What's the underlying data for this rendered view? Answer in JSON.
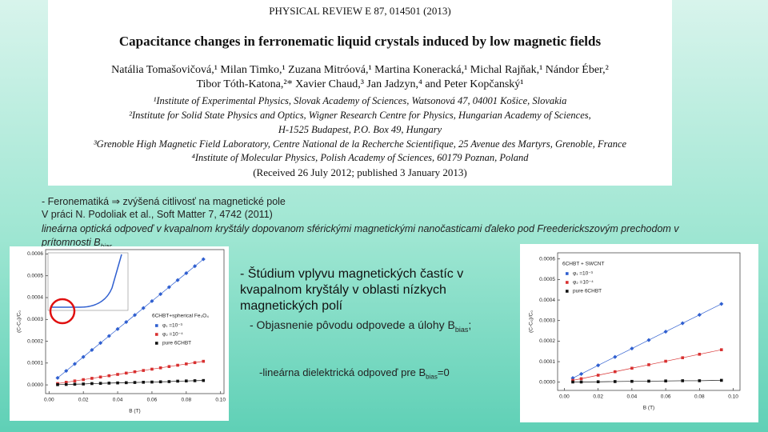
{
  "header": {
    "journal": "PHYSICAL REVIEW E 87, 014501 (2013)",
    "title": "Capacitance changes in ferronematic liquid crystals induced by low magnetic fields",
    "authors": [
      "Natália Tomašovičová,¹ Milan Timko,¹ Zuzana Mitróová,¹ Martina Koneracká,¹ Michal Rajňak,¹ Nándor Éber,²",
      "Tibor Tóth-Katona,²* Xavier Chaud,³ Jan Jadzyn,⁴ and Peter Kopčanský¹"
    ],
    "affiliations": [
      "¹Institute of Experimental Physics, Slovak Academy of Sciences, Watsonová 47, 04001 Košice, Slovakia",
      "²Institute for Solid State Physics and Optics, Wigner Research Centre for Physics, Hungarian Academy of Sciences,",
      "H-1525 Budapest, P.O. Box 49, Hungary",
      "³Grenoble High Magnetic Field Laboratory, Centre National de la Recherche Scientifique, 25 Avenue des Martyrs, Grenoble, France",
      "⁴Institute of Molecular Physics, Polish Academy of Sciences, 60179 Poznan, Poland"
    ],
    "received": "(Received 26 July 2012; published 3 January 2013)"
  },
  "notes": {
    "line1": "- Feronematiká ⇒ zvýšená citlivosť na magnetické pole",
    "line2": "V práci N. Podoliak et al., Soft Matter 7, 4742 (2011)",
    "line3": " lineárna optická odpoveď v kvapalnom kryštály dopovanom sférickými magnetickými nanočasticami  ďaleko pod Freederickszovým prechodom v prítomnosti B",
    "line3_sub": "bias"
  },
  "points": {
    "study": "- Štúdium vplyvu magnetických častíc v kvapalnom kryštály v oblasti nízkych magnetických polí",
    "origin": "- Objasnenie pôvodu odpovede a úlohy B",
    "origin_sub": "bias",
    "origin_end": ";",
    "linear": "-lineárna dielektrická odpoveď pre B",
    "linear_sub": "bias",
    "linear_end": "=0"
  },
  "charts": [
    {
      "type": "scatter",
      "xlabel": "B (T)",
      "ylabel": "(C-C₀)/C₀",
      "legend_title": "6CHBT+spherical Fe₃O₄",
      "xlim": [
        -0.002,
        0.102
      ],
      "ylim": [
        -4e-05,
        0.00062
      ],
      "xticks": [
        {
          "value": 0,
          "label": "0.00"
        },
        0.02,
        0.04,
        0.06,
        0.08,
        {
          "value": 0.1,
          "label": "0.10"
        }
      ],
      "yticks": [
        {
          "value": 0,
          "label": "0.0000"
        },
        0.0001,
        0.0002,
        0.0003,
        0.0004,
        0.0005,
        0.0006
      ],
      "x": [
        0.005,
        0.01,
        0.015,
        0.02,
        0.025,
        0.03,
        0.035,
        0.04,
        0.045,
        0.05,
        0.055,
        0.06,
        0.065,
        0.07,
        0.075,
        0.08,
        0.085,
        0.09
      ],
      "series": [
        {
          "name": "φ₁ =10⁻³",
          "color": "#2f5fd0",
          "values": [
            3.2e-05,
            6.4e-05,
            9.6e-05,
            0.000128,
            0.00016,
            0.000192,
            0.000224,
            0.000256,
            0.000288,
            0.00032,
            0.000352,
            0.000384,
            0.000416,
            0.000448,
            0.00048,
            0.000512,
            0.000544,
            0.000576
          ]
        },
        {
          "name": "φ₂ =10⁻⁴",
          "color": "#d83030",
          "values": [
            6e-06,
            1.2e-05,
            1.8e-05,
            2.4e-05,
            3e-05,
            3.6e-05,
            4.2e-05,
            4.8e-05,
            5.4e-05,
            6e-05,
            6.6e-05,
            7.2e-05,
            7.8e-05,
            8.4e-05,
            9e-05,
            9.6e-05,
            0.000102,
            0.000108
          ]
        },
        {
          "name": "pure 6CHBT",
          "color": "#111111",
          "values": [
            1e-06,
            2e-06,
            3e-06,
            4e-06,
            6e-06,
            7e-06,
            8e-06,
            9e-06,
            1e-05,
            1.1e-05,
            1.2e-05,
            1.3e-05,
            1.4e-05,
            1.5e-05,
            1.7e-05,
            1.8e-05,
            1.9e-05,
            2e-05
          ]
        }
      ]
    },
    {
      "type": "scatter",
      "xlabel": "B (T)",
      "ylabel": "(C-C₀)/C₀",
      "legend_title": "6CHBT + SWCNT",
      "xlim": [
        -0.004,
        0.104
      ],
      "ylim": [
        -4e-05,
        0.00063
      ],
      "xticks": [
        {
          "value": 0,
          "label": "0.00"
        },
        0.02,
        0.04,
        0.06,
        0.08,
        {
          "value": 0.1,
          "label": "0.10"
        }
      ],
      "yticks": [
        {
          "value": 0,
          "label": "0.0000"
        },
        0.0001,
        0.0002,
        0.0003,
        0.0004,
        0.0005,
        0.0006
      ],
      "x": [
        0.005,
        0.01,
        0.02,
        0.03,
        0.04,
        0.05,
        0.06,
        0.07,
        0.08,
        0.093
      ],
      "series": [
        {
          "name": "φ₁ =10⁻³",
          "color": "#2f5fd0",
          "values": [
            2e-05,
            4e-05,
            8.2e-05,
            0.000123,
            0.000164,
            0.000205,
            0.000246,
            0.000287,
            0.000328,
            0.000381
          ]
        },
        {
          "name": "φ₂ =10⁻⁴",
          "color": "#d83030",
          "values": [
            9e-06,
            1.7e-05,
            3.4e-05,
            5.1e-05,
            6.8e-05,
            8.5e-05,
            0.000102,
            0.000119,
            0.000136,
            0.000158
          ]
        },
        {
          "name": "pure 6CHBT",
          "color": "#111111",
          "values": [
            1e-06,
            1e-06,
            2e-06,
            3e-06,
            4e-06,
            5e-06,
            6e-06,
            7e-06,
            7e-06,
            9e-06
          ]
        }
      ]
    }
  ]
}
